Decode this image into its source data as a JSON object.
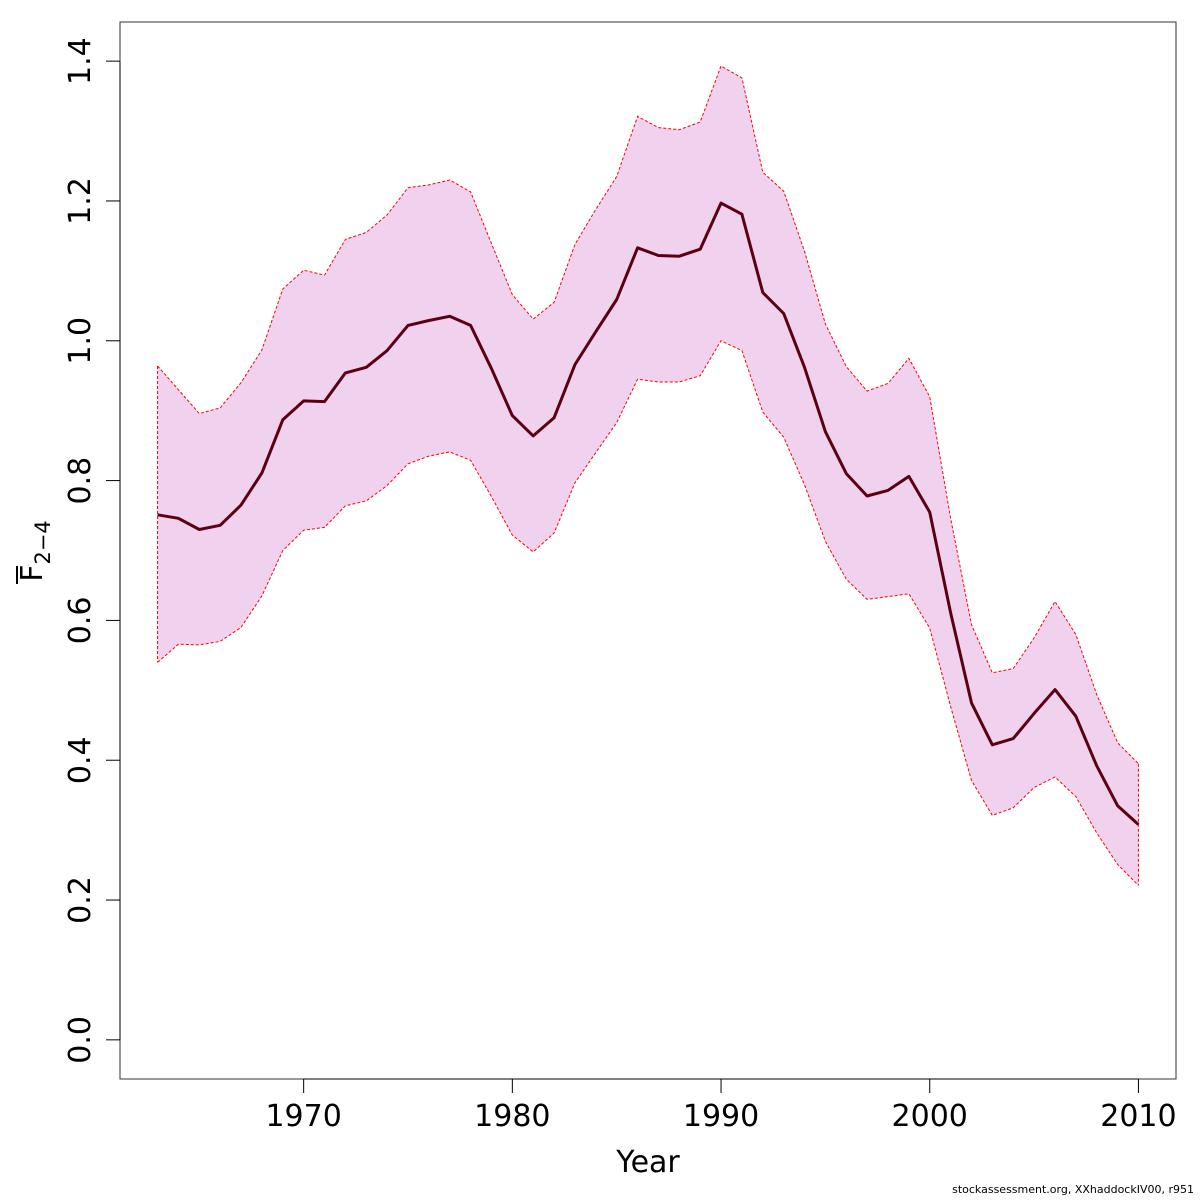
{
  "chart_data": {
    "type": "line",
    "xlabel": "Year",
    "ylabel_main": "F",
    "ylabel_sub": "2−4",
    "xlim": [
      1961.2,
      2011.8
    ],
    "ylim": [
      -0.056,
      1.456
    ],
    "x_ticks": [
      1970,
      1980,
      1990,
      2000,
      2010
    ],
    "x_tick_labels": [
      "1970",
      "1980",
      "1990",
      "2000",
      "2010"
    ],
    "y_ticks": [
      0.0,
      0.2,
      0.4,
      0.6,
      0.8,
      1.0,
      1.2,
      1.4
    ],
    "y_tick_labels": [
      "0.0",
      "0.2",
      "0.4",
      "0.6",
      "0.8",
      "1.0",
      "1.2",
      "1.4"
    ],
    "grid": false,
    "colors": {
      "line": "#5c0011",
      "band_fill": "#f0d2ee",
      "band_border": "#ff0000"
    },
    "x": [
      1963,
      1964,
      1965,
      1966,
      1967,
      1968,
      1969,
      1970,
      1971,
      1972,
      1973,
      1974,
      1975,
      1976,
      1977,
      1978,
      1979,
      1980,
      1981,
      1982,
      1983,
      1984,
      1985,
      1986,
      1987,
      1988,
      1989,
      1990,
      1991,
      1992,
      1993,
      1994,
      1995,
      1996,
      1997,
      1998,
      1999,
      2000,
      2001,
      2002,
      2003,
      2004,
      2005,
      2006,
      2007,
      2008,
      2009,
      2010
    ],
    "series": [
      {
        "role": "estimate",
        "values": [
          0.751,
          0.746,
          0.73,
          0.736,
          0.765,
          0.811,
          0.887,
          0.914,
          0.913,
          0.954,
          0.962,
          0.986,
          1.022,
          1.029,
          1.035,
          1.022,
          0.96,
          0.893,
          0.864,
          0.89,
          0.966,
          1.013,
          1.059,
          1.133,
          1.122,
          1.121,
          1.131,
          1.197,
          1.181,
          1.069,
          1.039,
          0.962,
          0.87,
          0.81,
          0.778,
          0.786,
          0.806,
          0.755,
          0.611,
          0.482,
          0.422,
          0.431,
          0.467,
          0.501,
          0.463,
          0.392,
          0.335,
          0.308
        ]
      },
      {
        "role": "upper",
        "values": [
          0.964,
          0.93,
          0.896,
          0.904,
          0.94,
          0.987,
          1.074,
          1.101,
          1.094,
          1.145,
          1.155,
          1.18,
          1.219,
          1.223,
          1.23,
          1.213,
          1.139,
          1.066,
          1.031,
          1.055,
          1.138,
          1.188,
          1.235,
          1.321,
          1.305,
          1.302,
          1.313,
          1.393,
          1.376,
          1.241,
          1.214,
          1.128,
          1.024,
          0.963,
          0.928,
          0.939,
          0.975,
          0.92,
          0.746,
          0.594,
          0.525,
          0.531,
          0.575,
          0.627,
          0.58,
          0.494,
          0.425,
          0.395
        ]
      },
      {
        "role": "lower",
        "values": [
          0.54,
          0.566,
          0.565,
          0.57,
          0.59,
          0.635,
          0.7,
          0.729,
          0.733,
          0.764,
          0.771,
          0.793,
          0.824,
          0.835,
          0.841,
          0.829,
          0.777,
          0.722,
          0.698,
          0.725,
          0.797,
          0.84,
          0.883,
          0.945,
          0.941,
          0.941,
          0.95,
          1.0,
          0.986,
          0.898,
          0.862,
          0.794,
          0.713,
          0.659,
          0.63,
          0.634,
          0.638,
          0.589,
          0.477,
          0.371,
          0.321,
          0.332,
          0.361,
          0.376,
          0.348,
          0.296,
          0.251,
          0.221
        ]
      }
    ]
  },
  "footer": {
    "text": "stockassessment.org, XXhaddockIV00, r951"
  }
}
